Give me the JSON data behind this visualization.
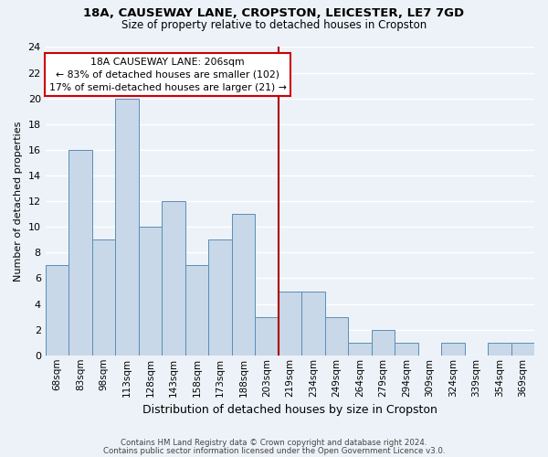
{
  "title1": "18A, CAUSEWAY LANE, CROPSTON, LEICESTER, LE7 7GD",
  "title2": "Size of property relative to detached houses in Cropston",
  "xlabel": "Distribution of detached houses by size in Cropston",
  "ylabel": "Number of detached properties",
  "bins": [
    "68sqm",
    "83sqm",
    "98sqm",
    "113sqm",
    "128sqm",
    "143sqm",
    "158sqm",
    "173sqm",
    "188sqm",
    "203sqm",
    "219sqm",
    "234sqm",
    "249sqm",
    "264sqm",
    "279sqm",
    "294sqm",
    "309sqm",
    "324sqm",
    "339sqm",
    "354sqm",
    "369sqm"
  ],
  "values": [
    7,
    16,
    9,
    20,
    10,
    12,
    7,
    9,
    11,
    3,
    5,
    5,
    3,
    1,
    2,
    1,
    0,
    1,
    0,
    1,
    1
  ],
  "bar_color": "#c8d8e8",
  "bar_edge_color": "#5b8db8",
  "annotation_title": "18A CAUSEWAY LANE: 206sqm",
  "annotation_line1": "← 83% of detached houses are smaller (102)",
  "annotation_line2": "17% of semi-detached houses are larger (21) →",
  "annotation_box_color": "#ffffff",
  "annotation_box_edge": "#cc0000",
  "vline_color": "#aa0000",
  "ylim": [
    0,
    24
  ],
  "yticks": [
    0,
    2,
    4,
    6,
    8,
    10,
    12,
    14,
    16,
    18,
    20,
    22,
    24
  ],
  "footnote1": "Contains HM Land Registry data © Crown copyright and database right 2024.",
  "footnote2": "Contains public sector information licensed under the Open Government Licence v3.0.",
  "bg_color": "#edf2f8",
  "grid_color": "#ffffff",
  "vline_x": 9.5
}
